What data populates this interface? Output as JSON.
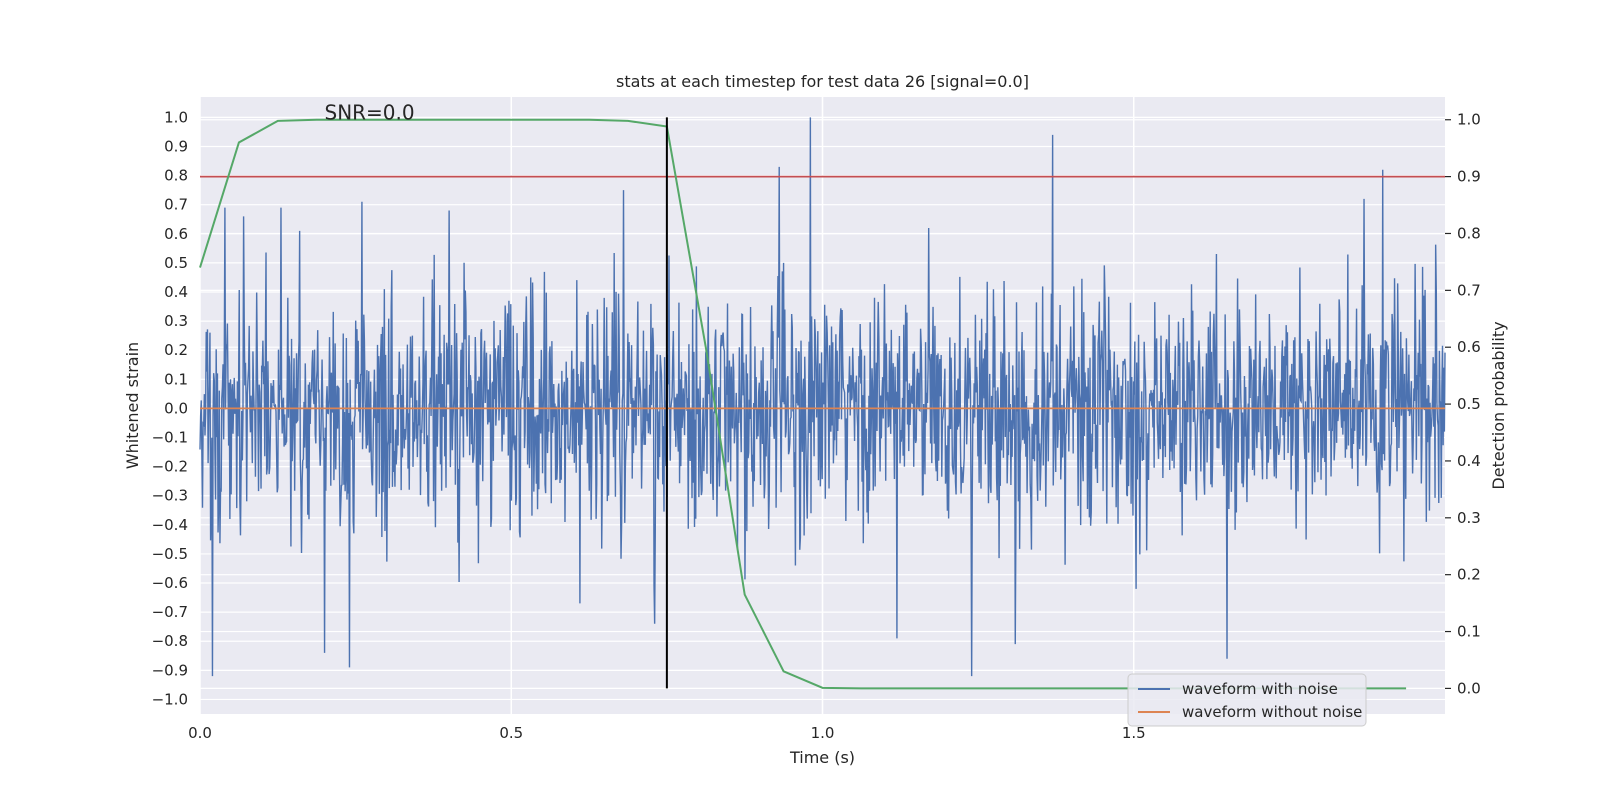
{
  "chart_data": {
    "type": "line",
    "title": "stats at each timestep for test data 26 [signal=0.0]",
    "xlabel": "Time (s)",
    "ylabel": "Whitened strain",
    "ylabel_right": "Detection probability",
    "xlim": [
      0,
      2.0
    ],
    "ylim": [
      -1.05,
      1.07
    ],
    "ylim_right": [
      -0.045,
      1.04
    ],
    "x_ticks": [
      0.0,
      0.5,
      1.0,
      1.5
    ],
    "x_tick_labels": [
      "0.0",
      "0.5",
      "1.0",
      "1.5"
    ],
    "y_ticks": [
      -1.0,
      -0.9,
      -0.8,
      -0.7,
      -0.6,
      -0.5,
      -0.4,
      -0.3,
      -0.2,
      -0.1,
      0.0,
      0.1,
      0.2,
      0.3,
      0.4,
      0.5,
      0.6,
      0.7,
      0.8,
      0.9,
      1.0
    ],
    "y_tick_labels": [
      "−1.0",
      "−0.9",
      "−0.8",
      "−0.7",
      "−0.6",
      "−0.5",
      "−0.4",
      "−0.3",
      "−0.2",
      "−0.1",
      "0.0",
      "0.1",
      "0.2",
      "0.3",
      "0.4",
      "0.5",
      "0.6",
      "0.7",
      "0.8",
      "0.9",
      "1.0"
    ],
    "y_ticks_right": [
      0.0,
      0.1,
      0.2,
      0.3,
      0.4,
      0.5,
      0.6,
      0.7,
      0.8,
      0.9,
      1.0
    ],
    "y_tick_labels_right": [
      "0.0",
      "0.1",
      "0.2",
      "0.3",
      "0.4",
      "0.5",
      "0.6",
      "0.7",
      "0.8",
      "0.9",
      "1.0"
    ],
    "grid": true,
    "legend_placement": "lower-right",
    "annotation": "SNR=0.0",
    "annotation_position": {
      "x": 0.2,
      "y": 1.0
    },
    "vertical_marker_x": 0.75,
    "threshold_right": 0.9,
    "series": [
      {
        "name": "waveform with noise",
        "axis": "left",
        "color": "#4c72b0",
        "noise": {
          "samples": 2000,
          "std": 0.2,
          "seed": 26
        },
        "spikes": [
          {
            "x": 0.02,
            "y": -0.92
          },
          {
            "x": 0.04,
            "y": 0.69
          },
          {
            "x": 0.07,
            "y": 0.66
          },
          {
            "x": 0.13,
            "y": 0.69
          },
          {
            "x": 0.16,
            "y": 0.61
          },
          {
            "x": 0.2,
            "y": -0.84
          },
          {
            "x": 0.24,
            "y": -0.89
          },
          {
            "x": 0.26,
            "y": 0.71
          },
          {
            "x": 0.4,
            "y": 0.68
          },
          {
            "x": 0.61,
            "y": -0.67
          },
          {
            "x": 0.68,
            "y": 0.75
          },
          {
            "x": 0.73,
            "y": -0.74
          },
          {
            "x": 0.93,
            "y": 0.83
          },
          {
            "x": 0.98,
            "y": 1.0
          },
          {
            "x": 1.12,
            "y": -0.79
          },
          {
            "x": 1.24,
            "y": -0.92
          },
          {
            "x": 1.31,
            "y": -0.81
          },
          {
            "x": 1.37,
            "y": 0.94
          },
          {
            "x": 1.65,
            "y": -0.86
          },
          {
            "x": 1.9,
            "y": 0.82
          },
          {
            "x": 1.87,
            "y": 0.72
          }
        ]
      },
      {
        "name": "waveform without noise",
        "axis": "left",
        "color": "#dd8452",
        "x": [
          0.0,
          2.0
        ],
        "y": [
          0.0,
          0.0
        ]
      },
      {
        "name": "",
        "axis": "right",
        "color": "#55a868",
        "x": [
          0.0,
          0.0625,
          0.125,
          0.1875,
          0.25,
          0.3125,
          0.375,
          0.4375,
          0.5,
          0.5625,
          0.625,
          0.6875,
          0.75,
          0.8125,
          0.875,
          0.9375,
          1.0,
          1.0625,
          1.125,
          1.1875,
          1.25,
          1.3125,
          1.375,
          1.4375,
          1.5,
          1.5625,
          1.625,
          1.6875,
          1.75,
          1.8125,
          1.875,
          1.9375
        ],
        "y": [
          0.74,
          0.96,
          0.998,
          1.0,
          1.0,
          1.0,
          1.0,
          1.0,
          1.0,
          1.0,
          1.0,
          0.998,
          0.988,
          0.6,
          0.165,
          0.03,
          0.001,
          0.0,
          0.0,
          0.0,
          0.0,
          0.0,
          0.0,
          0.0,
          0.0,
          0.0,
          0.0,
          0.0,
          0.0,
          0.0,
          0.0,
          0.0
        ]
      }
    ]
  },
  "colors": {
    "plot_background": "#eaeaf2",
    "grid": "#ffffff",
    "threshold_line": "#c44e52",
    "vertical_marker": "#000000"
  }
}
